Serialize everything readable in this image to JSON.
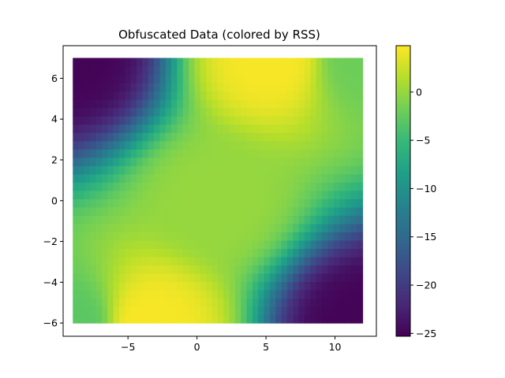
{
  "chart_data": [
    {
      "type": "heatmap",
      "title": "Obfuscated Data (colored by RSS)",
      "xlabel": "",
      "ylabel": "",
      "xlim": [
        -9.7,
        13.0
      ],
      "ylim": [
        -6.65,
        7.6
      ],
      "x_ticks": [
        -5,
        0,
        5,
        10
      ],
      "x_tick_labels": [
        "−5",
        "0",
        "5",
        "10"
      ],
      "y_ticks": [
        -6,
        -4,
        -2,
        0,
        2,
        4,
        6
      ],
      "y_tick_labels": [
        "−6",
        "−4",
        "−2",
        "0",
        "2",
        "4",
        "6"
      ],
      "data_extent": {
        "x": [
          -9,
          12
        ],
        "y": [
          -6,
          7
        ]
      },
      "colormap": "viridis",
      "color_range": [
        -25.3,
        4.8
      ],
      "field_samples": [
        {
          "x": -9,
          "y": 7,
          "value": -25
        },
        {
          "x": 12,
          "y": -6,
          "value": -25
        },
        {
          "x": 5.5,
          "y": 7,
          "value": 4.5
        },
        {
          "x": -3.5,
          "y": -6,
          "value": 4.5
        },
        {
          "x": 12,
          "y": 7,
          "value": -2
        },
        {
          "x": -9,
          "y": -6,
          "value": -3
        },
        {
          "x": 1.5,
          "y": 0,
          "value": 0
        }
      ],
      "colorbar": {
        "ticks": [
          0,
          -5,
          -10,
          -15,
          -20,
          -25
        ],
        "tick_labels": [
          "0",
          "−5",
          "−10",
          "−15",
          "−20",
          "−25"
        ]
      },
      "grid": false,
      "legend": "none"
    }
  ],
  "colors": {
    "viridis_stops": [
      "#440154",
      "#482878",
      "#3e4989",
      "#31688e",
      "#26828e",
      "#1f9e89",
      "#35b779",
      "#6ece58",
      "#b5de2b",
      "#fde725"
    ]
  }
}
